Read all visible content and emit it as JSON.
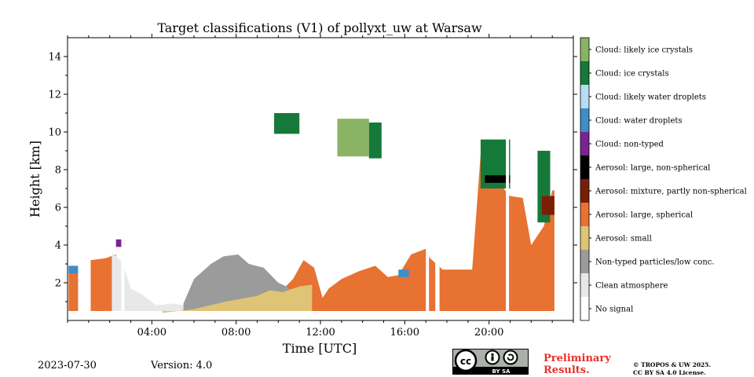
{
  "chart_data": {
    "type": "heatmap",
    "title": "Target classifications (V1) of pollyxt_uw at Warsaw",
    "xlabel": "Time [UTC]",
    "ylabel": "Height [km]",
    "x_unit": "hours UTC",
    "xlim": [
      0,
      24
    ],
    "ylim": [
      0,
      15
    ],
    "x_ticks": [
      4,
      8,
      12,
      16,
      20
    ],
    "x_tick_labels": [
      "04:00",
      "08:00",
      "12:00",
      "16:00",
      "20:00"
    ],
    "y_ticks": [
      2,
      4,
      6,
      8,
      10,
      12,
      14
    ],
    "y_tick_labels": [
      "2",
      "4",
      "6",
      "8",
      "10",
      "12",
      "14"
    ],
    "classes": [
      {
        "label": "Cloud: likely ice crystals",
        "color": "#8ab363"
      },
      {
        "label": "Cloud: ice crystals",
        "color": "#15793a"
      },
      {
        "label": "Cloud: likely water droplets",
        "color": "#b8dcf4"
      },
      {
        "label": "Cloud: water droplets",
        "color": "#3e8ec8"
      },
      {
        "label": "Cloud: non-typed",
        "color": "#7a2391"
      },
      {
        "label": "Aerosol: large, non-spherical",
        "color": "#000000"
      },
      {
        "label": "Aerosol: mixture, partly non-spherical",
        "color": "#7a1f06"
      },
      {
        "label": "Aerosol: large, spherical",
        "color": "#e77232"
      },
      {
        "label": "Aerosol: small",
        "color": "#dfc476"
      },
      {
        "label": "Non-typed particles/low conc.",
        "color": "#9b9b9b"
      },
      {
        "label": "Clean atmosphere",
        "color": "#e8e8e8"
      },
      {
        "label": "No signal",
        "color": "#ffffff"
      }
    ],
    "layers": [
      {
        "class": "Aerosol: large, spherical",
        "profile": [
          [
            0.05,
            2.7
          ],
          [
            0.6,
            2.6
          ],
          [
            1.1,
            3.2
          ],
          [
            1.8,
            3.3
          ],
          [
            2.3,
            3.5
          ],
          [
            2.5,
            1.4
          ],
          [
            3.0,
            1.3
          ],
          [
            3.6,
            1.1
          ],
          [
            4.4,
            0.6
          ],
          [
            5.2,
            0.7
          ],
          [
            6.0,
            1.0
          ],
          [
            6.8,
            2.6
          ],
          [
            7.4,
            2.2
          ],
          [
            8.1,
            2.6
          ],
          [
            8.6,
            2.3
          ],
          [
            9.3,
            2.0
          ],
          [
            10.0,
            1.4
          ],
          [
            10.7,
            2.2
          ],
          [
            11.2,
            3.2
          ],
          [
            11.7,
            2.8
          ],
          [
            12.1,
            1.2
          ],
          [
            12.4,
            1.7
          ],
          [
            13.0,
            2.2
          ],
          [
            13.8,
            2.6
          ],
          [
            14.6,
            2.9
          ],
          [
            15.2,
            2.3
          ],
          [
            15.7,
            2.4
          ],
          [
            16.3,
            3.5
          ],
          [
            17.0,
            3.8
          ],
          [
            17.2,
            3.3
          ],
          [
            17.8,
            2.7
          ],
          [
            19.2,
            2.7
          ],
          [
            19.6,
            8.8
          ],
          [
            20.3,
            7.5
          ],
          [
            21.0,
            6.6
          ],
          [
            21.6,
            6.5
          ],
          [
            22.0,
            4.0
          ],
          [
            22.6,
            5.0
          ],
          [
            23.0,
            6.9
          ],
          [
            23.1,
            6.9
          ]
        ]
      },
      {
        "class": "Non-typed particles/low conc.",
        "profile": [
          [
            5.5,
            0.9
          ],
          [
            6.0,
            2.2
          ],
          [
            6.8,
            3.0
          ],
          [
            7.4,
            3.4
          ],
          [
            8.1,
            3.5
          ],
          [
            8.6,
            3.0
          ],
          [
            9.3,
            2.8
          ],
          [
            10.0,
            2.0
          ],
          [
            10.4,
            1.8
          ],
          [
            11.0,
            1.2
          ]
        ]
      },
      {
        "class": "Clean atmosphere",
        "profile": [
          [
            2.1,
            3.6
          ],
          [
            2.6,
            3.1
          ],
          [
            3.0,
            1.7
          ],
          [
            3.5,
            1.4
          ],
          [
            4.2,
            0.8
          ],
          [
            5.0,
            0.9
          ],
          [
            5.5,
            0.8
          ]
        ]
      },
      {
        "class": "Aerosol: small",
        "profile": [
          [
            4.5,
            0.4
          ],
          [
            6.0,
            0.6
          ],
          [
            7.5,
            1.0
          ],
          [
            9.0,
            1.3
          ],
          [
            9.6,
            1.6
          ],
          [
            10.2,
            1.5
          ],
          [
            11.0,
            1.8
          ],
          [
            11.6,
            1.9
          ]
        ]
      }
    ],
    "features": [
      {
        "class": "Cloud: water droplets",
        "t_start": 0.05,
        "t_end": 0.6,
        "h_bottom": 2.5,
        "h_top": 2.9
      },
      {
        "class": "Cloud: water droplets",
        "t_start": 15.7,
        "t_end": 16.2,
        "h_bottom": 2.3,
        "h_top": 2.7
      },
      {
        "class": "Cloud: non-typed",
        "t_start": 2.3,
        "t_end": 2.7,
        "h_bottom": 3.9,
        "h_top": 4.3
      },
      {
        "class": "Cloud: ice crystals",
        "t_start": 9.8,
        "t_end": 11.0,
        "h_bottom": 9.9,
        "h_top": 11.0
      },
      {
        "class": "Cloud: ice crystals",
        "t_start": 14.3,
        "t_end": 14.9,
        "h_bottom": 8.6,
        "h_top": 10.5
      },
      {
        "class": "Cloud: likely ice crystals",
        "t_start": 12.8,
        "t_end": 14.3,
        "h_bottom": 8.7,
        "h_top": 10.7
      },
      {
        "class": "Cloud: ice crystals",
        "t_start": 19.6,
        "t_end": 21.0,
        "h_bottom": 7.0,
        "h_top": 9.6
      },
      {
        "class": "Cloud: ice crystals",
        "t_start": 22.3,
        "t_end": 22.9,
        "h_bottom": 5.2,
        "h_top": 9.0
      },
      {
        "class": "Aerosol: large, non-spherical",
        "t_start": 19.8,
        "t_end": 21.0,
        "h_bottom": 7.3,
        "h_top": 7.7
      },
      {
        "class": "Aerosol: mixture, partly non-spherical",
        "t_start": 22.5,
        "t_end": 23.1,
        "h_bottom": 5.6,
        "h_top": 6.6
      }
    ],
    "gaps": [
      [
        0.5,
        1.1
      ],
      [
        2.55,
        2.7
      ],
      [
        17.0,
        17.15
      ],
      [
        17.45,
        17.65
      ],
      [
        20.8,
        20.95
      ]
    ]
  },
  "footer": {
    "date": "2023-07-30",
    "version": "Version: 4.0",
    "preliminary_line1": "Preliminary",
    "preliminary_line2": "Results.",
    "copyright_line1": "© TROPOS & UW 2025.",
    "copyright_line2": "CC BY SA 4.0 License.",
    "license_badge_text": "BY   SA"
  }
}
